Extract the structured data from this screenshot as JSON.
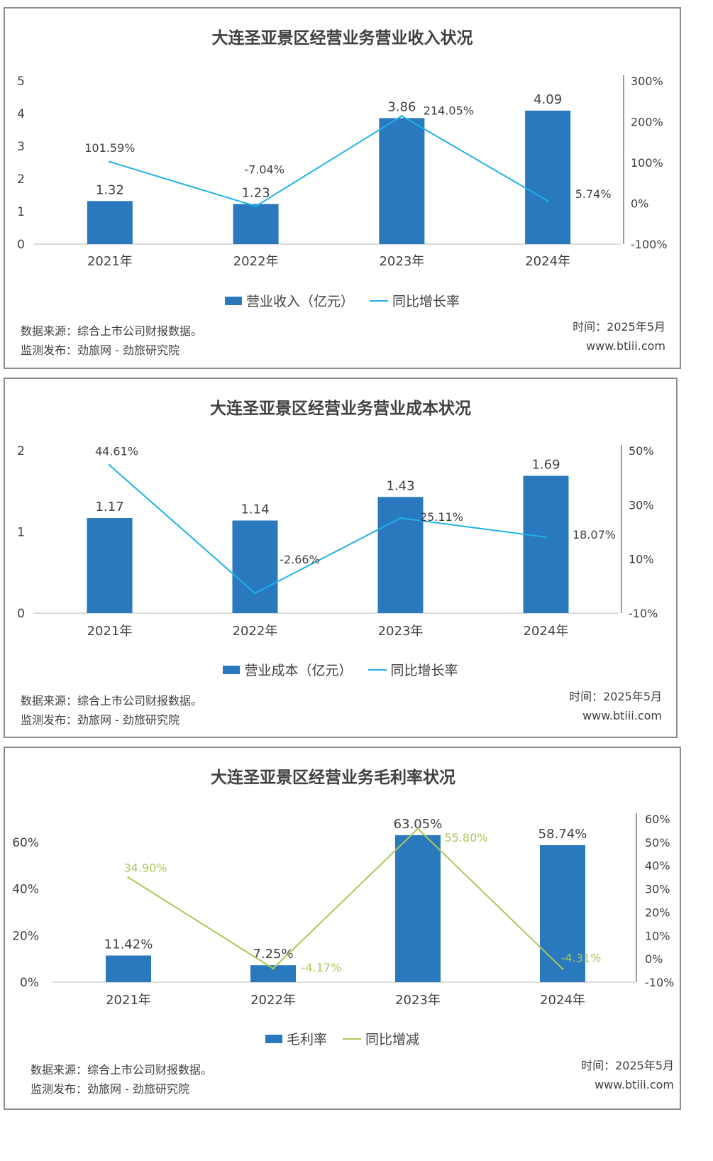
{
  "chart_data": [
    {
      "type": "bar",
      "title": "大连圣亚景区经营业务营业收入状况",
      "categories": [
        "2021年",
        "2022年",
        "2023年",
        "2024年"
      ],
      "series": [
        {
          "name": "营业收入（亿元）",
          "type": "bar",
          "axis": "left",
          "values": [
            1.32,
            1.23,
            3.86,
            4.09
          ],
          "labels": [
            "1.32",
            "1.23",
            "3.86",
            "4.09"
          ]
        },
        {
          "name": "同比增长率",
          "type": "line",
          "axis": "right",
          "values": [
            101.59,
            -7.04,
            214.05,
            5.74
          ],
          "labels": [
            "101.59%",
            "-7.04%",
            "214.05%",
            "5.74%"
          ]
        }
      ],
      "left_ticks": [
        "0",
        "1",
        "2",
        "3",
        "4",
        "5"
      ],
      "right_ticks": [
        "-100%",
        "0%",
        "100%",
        "200%",
        "300%"
      ],
      "ylim_left": [
        0,
        5
      ],
      "ylim_right": [
        -100,
        300
      ],
      "line_color": "#1fb3e6",
      "source": [
        "数据来源：综合上市公司财报数据。",
        "监测发布：劲旅网 - 劲旅研究院"
      ],
      "meta": [
        "时间：2025年5月",
        "www.btiii.com"
      ]
    },
    {
      "type": "bar",
      "title": "大连圣亚景区经营业务营业成本状况",
      "categories": [
        "2021年",
        "2022年",
        "2023年",
        "2024年"
      ],
      "series": [
        {
          "name": "营业成本（亿元）",
          "type": "bar",
          "axis": "left",
          "values": [
            1.17,
            1.14,
            1.43,
            1.69
          ],
          "labels": [
            "1.17",
            "1.14",
            "1.43",
            "1.69"
          ]
        },
        {
          "name": "同比增长率",
          "type": "line",
          "axis": "right",
          "values": [
            44.61,
            -2.66,
            25.11,
            18.07
          ],
          "labels": [
            "44.61%",
            "-2.66%",
            "25.11%",
            "18.07%"
          ]
        }
      ],
      "left_ticks": [
        "0",
        "1",
        "2"
      ],
      "right_ticks": [
        "-10%",
        "10%",
        "30%",
        "50%"
      ],
      "ylim_left": [
        0,
        2
      ],
      "ylim_right": [
        -10,
        50
      ],
      "line_color": "#1fb3e6",
      "source": [
        "数据来源：综合上市公司财报数据。",
        "监测发布：劲旅网 - 劲旅研究院"
      ],
      "meta": [
        "时间：2025年5月",
        "www.btiii.com"
      ]
    },
    {
      "type": "bar",
      "title": "大连圣亚景区经营业务毛利率状况",
      "categories": [
        "2021年",
        "2022年",
        "2023年",
        "2024年"
      ],
      "series": [
        {
          "name": "毛利率",
          "type": "bar",
          "axis": "left",
          "values": [
            11.42,
            7.25,
            63.05,
            58.74
          ],
          "labels": [
            "11.42%",
            "7.25%",
            "63.05%",
            "58.74%"
          ]
        },
        {
          "name": "同比增减",
          "type": "line",
          "axis": "right",
          "values": [
            34.9,
            -4.17,
            55.8,
            -4.31
          ],
          "labels": [
            "34.90%",
            "-4.17%",
            "55.80%",
            "-4.31%"
          ]
        }
      ],
      "left_ticks": [
        "0%",
        "20%",
        "40%",
        "60%"
      ],
      "right_ticks": [
        "-10%",
        "0%",
        "10%",
        "20%",
        "30%",
        "40%",
        "50%",
        "60%"
      ],
      "ylim_left": [
        0,
        70
      ],
      "ylim_right": [
        -10,
        60
      ],
      "line_color": "#a9c95a",
      "source": [
        "数据来源：综合上市公司财报数据。",
        "监测发布：劲旅网 - 劲旅研究院"
      ],
      "meta": [
        "时间：2025年5月",
        "www.btiii.com"
      ]
    }
  ]
}
